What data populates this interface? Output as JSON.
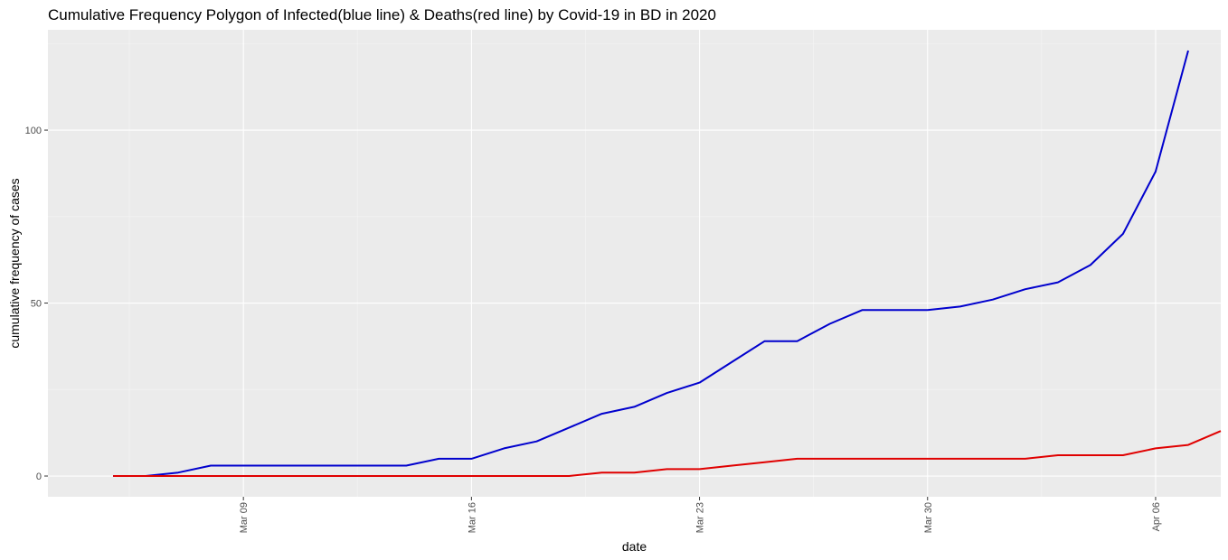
{
  "chart_data": {
    "type": "line",
    "title": "Cumulative Frequency Polygon of Infected(blue line) & Deaths(red line) by Covid-19 in BD in 2020",
    "xlabel": "date",
    "ylabel": "cumulative frequency of cases",
    "x_type": "date",
    "xlim": [
      "2020-03-03",
      "2020-04-08"
    ],
    "ylim": [
      -6,
      129
    ],
    "x_ticks": [
      {
        "date": "2020-03-09",
        "label": "Mar 09"
      },
      {
        "date": "2020-03-16",
        "label": "Mar 16"
      },
      {
        "date": "2020-03-23",
        "label": "Mar 23"
      },
      {
        "date": "2020-03-30",
        "label": "Mar 30"
      },
      {
        "date": "2020-04-06",
        "label": "Apr 06"
      }
    ],
    "y_ticks": [
      0,
      50,
      100
    ],
    "y_minor": [
      25,
      75,
      125
    ],
    "grid": true,
    "background": "#ebebeb",
    "series": [
      {
        "color": "#0000cd",
        "points": [
          [
            "2020-03-05",
            0
          ],
          [
            "2020-03-06",
            0
          ],
          [
            "2020-03-07",
            1
          ],
          [
            "2020-03-08",
            3
          ],
          [
            "2020-03-09",
            3
          ],
          [
            "2020-03-10",
            3
          ],
          [
            "2020-03-11",
            3
          ],
          [
            "2020-03-12",
            3
          ],
          [
            "2020-03-13",
            3
          ],
          [
            "2020-03-14",
            3
          ],
          [
            "2020-03-15",
            5
          ],
          [
            "2020-03-16",
            5
          ],
          [
            "2020-03-17",
            8
          ],
          [
            "2020-03-18",
            10
          ],
          [
            "2020-03-19",
            14
          ],
          [
            "2020-03-20",
            18
          ],
          [
            "2020-03-21",
            20
          ],
          [
            "2020-03-22",
            24
          ],
          [
            "2020-03-23",
            27
          ],
          [
            "2020-03-24",
            33
          ],
          [
            "2020-03-25",
            39
          ],
          [
            "2020-03-26",
            39
          ],
          [
            "2020-03-27",
            44
          ],
          [
            "2020-03-28",
            48
          ],
          [
            "2020-03-29",
            48
          ],
          [
            "2020-03-30",
            48
          ],
          [
            "2020-03-31",
            49
          ],
          [
            "2020-04-01",
            51
          ],
          [
            "2020-04-02",
            54
          ],
          [
            "2020-04-03",
            56
          ],
          [
            "2020-04-04",
            61
          ],
          [
            "2020-04-05",
            70
          ],
          [
            "2020-04-06",
            88
          ],
          [
            "2020-04-07",
            123
          ]
        ]
      },
      {
        "color": "#e00000",
        "points": [
          [
            "2020-03-05",
            0
          ],
          [
            "2020-03-06",
            0
          ],
          [
            "2020-03-07",
            0
          ],
          [
            "2020-03-08",
            0
          ],
          [
            "2020-03-09",
            0
          ],
          [
            "2020-03-10",
            0
          ],
          [
            "2020-03-11",
            0
          ],
          [
            "2020-03-12",
            0
          ],
          [
            "2020-03-13",
            0
          ],
          [
            "2020-03-14",
            0
          ],
          [
            "2020-03-15",
            0
          ],
          [
            "2020-03-16",
            0
          ],
          [
            "2020-03-17",
            0
          ],
          [
            "2020-03-18",
            0
          ],
          [
            "2020-03-19",
            0
          ],
          [
            "2020-03-20",
            1
          ],
          [
            "2020-03-21",
            1
          ],
          [
            "2020-03-22",
            2
          ],
          [
            "2020-03-23",
            2
          ],
          [
            "2020-03-24",
            3
          ],
          [
            "2020-03-25",
            4
          ],
          [
            "2020-03-26",
            5
          ],
          [
            "2020-03-27",
            5
          ],
          [
            "2020-03-28",
            5
          ],
          [
            "2020-03-29",
            5
          ],
          [
            "2020-03-30",
            5
          ],
          [
            "2020-03-31",
            5
          ],
          [
            "2020-04-01",
            5
          ],
          [
            "2020-04-02",
            5
          ],
          [
            "2020-04-03",
            6
          ],
          [
            "2020-04-04",
            6
          ],
          [
            "2020-04-05",
            6
          ],
          [
            "2020-04-06",
            8
          ],
          [
            "2020-04-07",
            9
          ],
          [
            "2020-04-08",
            13
          ]
        ]
      }
    ]
  }
}
